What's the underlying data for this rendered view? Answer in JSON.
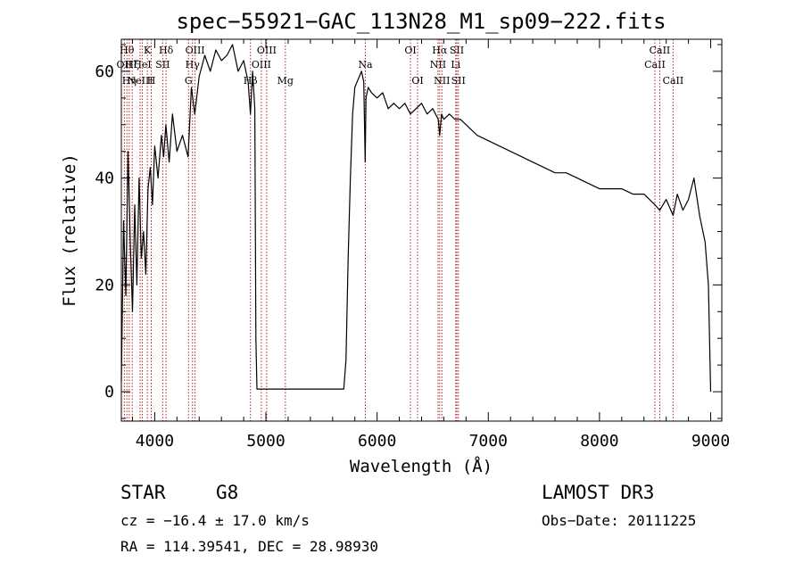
{
  "chart_data": {
    "type": "line",
    "title": "spec−55921−GAC_113N28_M1_sp09−222.fits",
    "xlabel": "Wavelength (Å)",
    "ylabel": "Flux (relative)",
    "xlim": [
      3700,
      9100
    ],
    "ylim": [
      -5.5,
      66
    ],
    "xticks": [
      4000,
      5000,
      6000,
      7000,
      8000,
      9000
    ],
    "yticks": [
      0,
      20,
      40,
      60
    ],
    "series": [
      {
        "name": "flux",
        "x": [
          3700,
          3720,
          3740,
          3760,
          3780,
          3800,
          3820,
          3840,
          3860,
          3880,
          3900,
          3920,
          3940,
          3960,
          3980,
          4000,
          4030,
          4060,
          4080,
          4100,
          4130,
          4160,
          4200,
          4250,
          4300,
          4330,
          4360,
          4400,
          4450,
          4500,
          4550,
          4600,
          4650,
          4700,
          4750,
          4800,
          4840,
          4861,
          4880,
          4900,
          4910,
          4920,
          4925,
          5000,
          5200,
          5400,
          5600,
          5700,
          5720,
          5740,
          5760,
          5780,
          5800,
          5820,
          5840,
          5860,
          5880,
          5893,
          5900,
          5920,
          5950,
          6000,
          6050,
          6100,
          6150,
          6200,
          6250,
          6300,
          6350,
          6400,
          6450,
          6500,
          6550,
          6563,
          6580,
          6600,
          6650,
          6700,
          6750,
          6800,
          6900,
          7000,
          7100,
          7200,
          7300,
          7400,
          7500,
          7600,
          7700,
          7800,
          7900,
          8000,
          8100,
          8200,
          8300,
          8400,
          8498,
          8542,
          8600,
          8662,
          8700,
          8750,
          8800,
          8850,
          8900,
          8950,
          8980,
          9000
        ],
        "y": [
          2,
          32,
          18,
          45,
          28,
          15,
          35,
          20,
          40,
          25,
          30,
          22,
          38,
          42,
          35,
          46,
          40,
          48,
          44,
          50,
          43,
          52,
          45,
          48,
          44,
          57,
          52,
          59,
          63,
          60,
          64,
          62,
          63,
          65,
          60,
          62,
          58,
          52,
          60,
          53,
          10,
          0.5,
          0.5,
          0.5,
          0.5,
          0.5,
          0.5,
          0.5,
          6,
          25,
          40,
          52,
          57,
          58,
          59,
          60,
          58,
          43,
          55,
          57,
          56,
          55,
          56,
          53,
          54,
          53,
          54,
          52,
          53,
          54,
          52,
          53,
          51,
          48,
          52,
          51,
          52,
          51,
          51,
          50,
          48,
          47,
          46,
          45,
          44,
          43,
          42,
          41,
          41,
          40,
          39,
          38,
          38,
          38,
          37,
          37,
          35,
          34,
          36,
          33,
          37,
          34,
          36,
          40,
          33,
          28,
          20,
          0
        ]
      }
    ],
    "lines": [
      {
        "wave": 3727,
        "label": "OII",
        "row": 2
      },
      {
        "wave": 3750,
        "label": "Hθ",
        "row": 1
      },
      {
        "wave": 3771,
        "label": "Hη",
        "row": 3
      },
      {
        "wave": 3798,
        "label": "Hζ",
        "row": 2
      },
      {
        "wave": 3869,
        "label": "NeIII",
        "row": 3
      },
      {
        "wave": 3889,
        "label": "HeI",
        "row": 2
      },
      {
        "wave": 3934,
        "label": "K",
        "row": 1
      },
      {
        "wave": 3969,
        "label": "H",
        "row": 3
      },
      {
        "wave": 4072,
        "label": "SII",
        "row": 2
      },
      {
        "wave": 4102,
        "label": "Hδ",
        "row": 1
      },
      {
        "wave": 4304,
        "label": "G",
        "row": 3
      },
      {
        "wave": 4340,
        "label": "Hγ",
        "row": 2
      },
      {
        "wave": 4363,
        "label": "OIII",
        "row": 1
      },
      {
        "wave": 4861,
        "label": "Hβ",
        "row": 3
      },
      {
        "wave": 4959,
        "label": "OIII",
        "row": 2
      },
      {
        "wave": 5007,
        "label": "OIII",
        "row": 1
      },
      {
        "wave": 5175,
        "label": "Mg",
        "row": 3
      },
      {
        "wave": 5894,
        "label": "Na",
        "row": 2
      },
      {
        "wave": 6300,
        "label": "OI",
        "row": 1
      },
      {
        "wave": 6364,
        "label": "OI",
        "row": 3
      },
      {
        "wave": 6548,
        "label": "NII",
        "row": 2
      },
      {
        "wave": 6563,
        "label": "Hα",
        "row": 1
      },
      {
        "wave": 6583,
        "label": "NII",
        "row": 3
      },
      {
        "wave": 6707,
        "label": "Li",
        "row": 2
      },
      {
        "wave": 6717,
        "label": "SII",
        "row": 1
      },
      {
        "wave": 6731,
        "label": "SII",
        "row": 3
      },
      {
        "wave": 8498,
        "label": "CaII",
        "row": 2
      },
      {
        "wave": 8542,
        "label": "CaII",
        "row": 1
      },
      {
        "wave": 8662,
        "label": "CaII",
        "row": 3
      }
    ]
  },
  "info": {
    "class_label": "STAR",
    "subclass": "G8",
    "survey": "LAMOST DR3",
    "cz": "cz = −16.4 ± 17.0 km/s",
    "obs_date": "Obs−Date: 20111225",
    "radec": "RA = 114.39541, DEC =  28.98930"
  },
  "colors": {
    "line_marker": "#b22222",
    "spectrum": "#000000",
    "axes": "#000000"
  }
}
